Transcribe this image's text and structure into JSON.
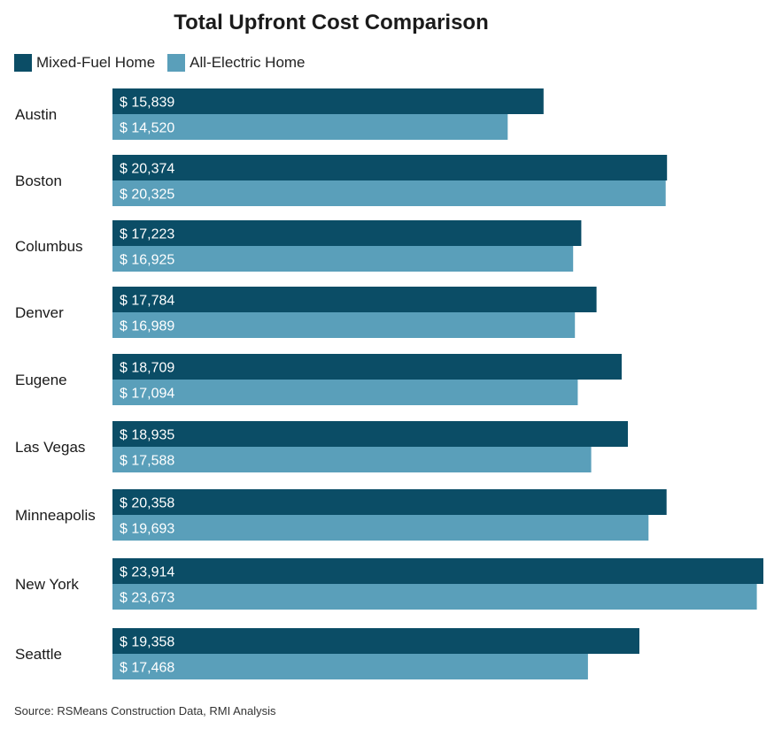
{
  "chart_data": {
    "type": "bar",
    "orientation": "horizontal",
    "title": "Total Upfront Cost Comparison",
    "categories": [
      "Austin",
      "Boston",
      "Columbus",
      "Denver",
      "Eugene",
      "Las Vegas",
      "Minneapolis",
      "New York",
      "Seattle"
    ],
    "series": [
      {
        "name": "Mixed-Fuel Home",
        "color": "#0b4d66",
        "values": [
          15839,
          20374,
          17223,
          17784,
          18709,
          18935,
          20358,
          23914,
          19358
        ],
        "labels": [
          "$ 15,839",
          "$ 20,374",
          "$ 17,223",
          "$ 17,784",
          "$ 18,709",
          "$ 18,935",
          "$ 20,358",
          "$ 23,914",
          "$ 19,358"
        ]
      },
      {
        "name": "All-Electric Home",
        "color": "#5a9fba",
        "values": [
          14520,
          20325,
          16925,
          16989,
          17094,
          17588,
          19693,
          23673,
          17468
        ],
        "labels": [
          "$ 14,520",
          "$ 20,325",
          "$ 16,925",
          "$ 16,989",
          "$ 17,094",
          "$ 17,588",
          "$ 19,693",
          "$ 23,673",
          "$ 17,468"
        ]
      }
    ],
    "xlim": [
      0,
      23914
    ],
    "legend_position": "top-left",
    "grid": false,
    "source": "Source: RSMeans Construction Data, RMI Analysis"
  }
}
